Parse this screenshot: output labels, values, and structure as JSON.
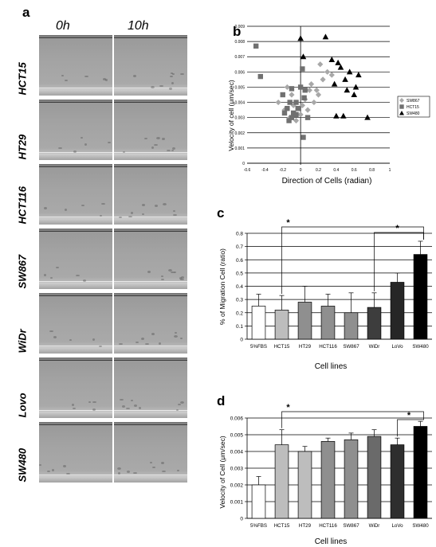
{
  "panel_a": {
    "letter": "a",
    "time_headers": [
      "0h",
      "10h"
    ],
    "rows": [
      "HCT15",
      "HT29",
      "HCT116",
      "SW867",
      "WiDr",
      "Lovo",
      "SW480"
    ]
  },
  "panel_b": {
    "letter": "b"
  },
  "panel_c": {
    "letter": "c"
  },
  "panel_d": {
    "letter": "d"
  },
  "chart_data": [
    {
      "type": "scatter",
      "panel": "b",
      "title": "",
      "xlabel": "Direction of Cells (radian)",
      "ylabel": "Velocity of cell (μm/sec)",
      "xlim": [
        -0.6,
        1
      ],
      "ylim": [
        0,
        0.009
      ],
      "xticks": [
        "-0.6",
        "-0.4",
        "-0.2",
        "0",
        "0.2",
        "0.4",
        "0.6",
        "0.8",
        "1"
      ],
      "yticks": [
        "0",
        "0.001",
        "0.002",
        "0.003",
        "0.004",
        "0.005",
        "0.006",
        "0.007",
        "0.008",
        "0.009"
      ],
      "grid": "horizontal",
      "legend": "right",
      "series": [
        {
          "name": "SW867",
          "marker": "diamond",
          "color": "#a8a8a8",
          "x": [
            -0.25,
            -0.18,
            -0.12,
            -0.1,
            -0.05,
            0,
            0.02,
            0.05,
            0.1,
            0.12,
            0.15,
            0.2,
            0.25,
            0.3,
            0.35,
            -0.15,
            0.08,
            0.18,
            -0.08,
            0.22
          ],
          "y": [
            0.004,
            0.0035,
            0.003,
            0.0045,
            0.0028,
            0.0032,
            0.0038,
            0.0042,
            0.0048,
            0.0052,
            0.004,
            0.0045,
            0.0055,
            0.006,
            0.0058,
            0.005,
            0.0035,
            0.0048,
            0.0038,
            0.0065
          ]
        },
        {
          "name": "HCT15",
          "marker": "square",
          "color": "#707070",
          "x": [
            -0.5,
            -0.45,
            -0.2,
            -0.18,
            -0.15,
            -0.12,
            -0.1,
            -0.08,
            -0.05,
            -0.03,
            0,
            0.02,
            0.03,
            0.05,
            0.08,
            -0.1,
            -0.05,
            0.04,
            -0.13
          ],
          "y": [
            0.0077,
            0.0057,
            0.0045,
            0.0033,
            0.0036,
            0.004,
            0.003,
            0.0033,
            0.0032,
            0.0036,
            0.005,
            0.0062,
            0.0017,
            0.0048,
            0.003,
            0.0049,
            0.004,
            0.0043,
            0.0028
          ]
        },
        {
          "name": "SW480",
          "marker": "triangle",
          "color": "#000000",
          "x": [
            0,
            0.03,
            0.28,
            0.35,
            0.38,
            0.42,
            0.45,
            0.5,
            0.52,
            0.55,
            0.6,
            0.65,
            0.48,
            0.75,
            0.4,
            0.62
          ],
          "y": [
            0.0082,
            0.007,
            0.0083,
            0.0068,
            0.0052,
            0.0066,
            0.0063,
            0.0055,
            0.0048,
            0.006,
            0.0045,
            0.0058,
            0.0031,
            0.003,
            0.0031,
            0.005
          ]
        }
      ]
    },
    {
      "type": "bar",
      "panel": "c",
      "title": "",
      "xlabel": "Cell lines",
      "ylabel": "% of Migration Cell (ratio)",
      "ylim": [
        0,
        0.8
      ],
      "yticks": [
        "0",
        "0.1",
        "0.2",
        "0.3",
        "0.4",
        "0.5",
        "0.6",
        "0.7",
        "0.8"
      ],
      "grid": "horizontal",
      "categories": [
        "5%FBS",
        "HCT15",
        "HT29",
        "HCT116",
        "SW867",
        "WiDr",
        "LoVo",
        "SW480"
      ],
      "values": [
        0.25,
        0.22,
        0.28,
        0.25,
        0.2,
        0.24,
        0.43,
        0.64
      ],
      "errors": [
        0.09,
        0.11,
        0.12,
        0.09,
        0.15,
        0.11,
        0.07,
        0.1
      ],
      "colors": [
        "#ffffff",
        "#bdbdbd",
        "#8f8f8f",
        "#8f8f8f",
        "#8f8f8f",
        "#3d3d3d",
        "#262626",
        "#000000"
      ],
      "significance": [
        {
          "from": "HCT15",
          "to": "SW480",
          "label": "*"
        },
        {
          "from": "WiDr",
          "to": "SW480",
          "label": "*"
        }
      ]
    },
    {
      "type": "bar",
      "panel": "d",
      "title": "",
      "xlabel": "Cell lines",
      "ylabel": "Velocity of Cell (μm/sec)",
      "ylim": [
        0,
        0.006
      ],
      "yticks": [
        "0",
        "0.001",
        "0.002",
        "0.003",
        "0.004",
        "0.005",
        "0.006"
      ],
      "grid": "horizontal",
      "categories": [
        "5%FBS",
        "HCT15",
        "HT29",
        "HCT116",
        "SW867",
        "WiDr",
        "LoVo",
        "SW480"
      ],
      "values": [
        0.002,
        0.0044,
        0.004,
        0.0046,
        0.0047,
        0.0049,
        0.0044,
        0.0055
      ],
      "errors": [
        0.0005,
        0.0009,
        0.0003,
        0.0002,
        0.0004,
        0.0004,
        0.0004,
        0.0003
      ],
      "colors": [
        "#ffffff",
        "#bdbdbd",
        "#bdbdbd",
        "#8f8f8f",
        "#8f8f8f",
        "#6a6a6a",
        "#2e2e2e",
        "#000000"
      ],
      "significance": [
        {
          "from": "HCT15",
          "to": "SW480",
          "label": "*"
        },
        {
          "from": "LoVo",
          "to": "SW480",
          "label": "*"
        }
      ]
    }
  ]
}
